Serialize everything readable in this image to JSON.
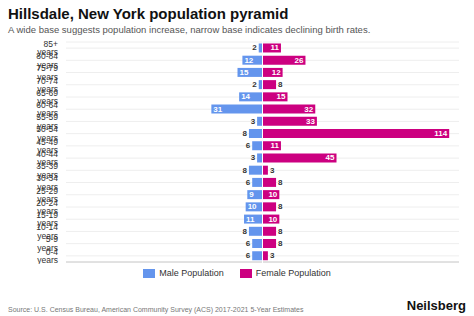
{
  "chart_data": {
    "type": "bar",
    "orientation": "horizontal",
    "title": "Hillsdale, New York population pyramid",
    "subtitle": "A wide base suggests population increase, narrow base indicates declining birth rates.",
    "annotations": [
      "Source: U.S. Census Bureau, American Community Survey (ACS) 2017-2021 5-Year Estimates",
      "Neilsberg"
    ],
    "categories": [
      "0-4 years",
      "5-9 years",
      "10-14 years",
      "15-19 years",
      "20-24 years",
      "25-29 years",
      "30-34 years",
      "35-39 years",
      "40-44 years",
      "45-49 years",
      "50-54 years",
      "55-59 years",
      "60-64 years",
      "65-69 years",
      "70-74 years",
      "75-79 years",
      "80-84 years",
      "85+ years"
    ],
    "series": [
      {
        "name": "Male Population",
        "color": "#6495ED",
        "values": [
          6,
          6,
          8,
          11,
          10,
          9,
          6,
          8,
          3,
          6,
          8,
          3,
          31,
          14,
          2,
          15,
          12,
          2
        ]
      },
      {
        "name": "Female Population",
        "color": "#CC0080",
        "values": [
          3,
          8,
          8,
          10,
          8,
          10,
          8,
          3,
          45,
          11,
          114,
          33,
          32,
          15,
          8,
          12,
          26,
          11
        ]
      }
    ],
    "xlim": [
      0,
      120
    ],
    "grid": true,
    "legend": "bottom",
    "data_labels": true,
    "tick_labels": "y"
  }
}
